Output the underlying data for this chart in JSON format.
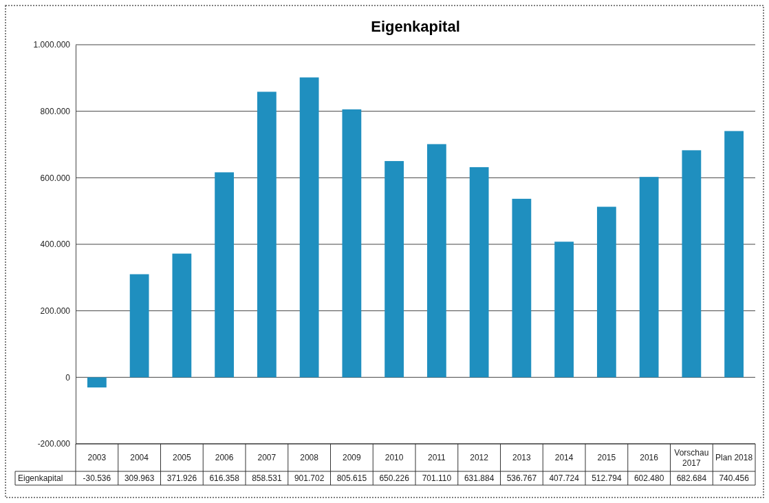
{
  "chart_data": {
    "type": "bar",
    "title": "Eigenkapital",
    "categories": [
      "2003",
      "2004",
      "2005",
      "2006",
      "2007",
      "2008",
      "2009",
      "2010",
      "2011",
      "2012",
      "2013",
      "2014",
      "2015",
      "2016",
      "Vorschau 2017",
      "Plan 2018"
    ],
    "series": [
      {
        "name": "Eigenkapital",
        "color": "#1f8fbf",
        "values": [
          -30536,
          309963,
          371926,
          616358,
          858531,
          901702,
          805615,
          650226,
          701110,
          631884,
          536767,
          407724,
          512794,
          602480,
          682684,
          740456
        ],
        "value_labels": [
          "-30.536",
          "309.963",
          "371.926",
          "616.358",
          "858.531",
          "901.702",
          "805.615",
          "650.226",
          "701.110",
          "631.884",
          "536.767",
          "407.724",
          "512.794",
          "602.480",
          "682.684",
          "740.456"
        ]
      }
    ],
    "ylim": [
      -200000,
      1000000
    ],
    "yticks": [
      {
        "value": -200000,
        "label": "-200.000"
      },
      {
        "value": 0,
        "label": "0"
      },
      {
        "value": 200000,
        "label": "200.000"
      },
      {
        "value": 400000,
        "label": "400.000"
      },
      {
        "value": 600000,
        "label": "600.000"
      },
      {
        "value": 800000,
        "label": "800.000"
      },
      {
        "value": 1000000,
        "label": "1.000.000"
      }
    ],
    "grid": "y",
    "legend": "bottom"
  }
}
